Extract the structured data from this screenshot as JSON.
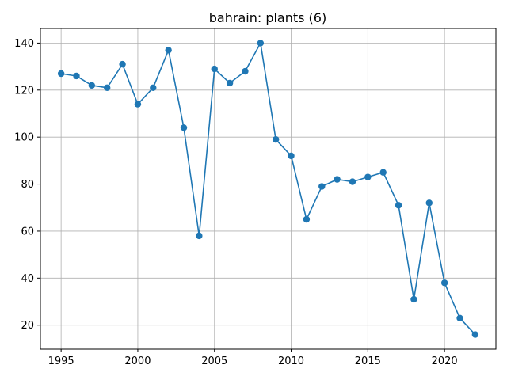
{
  "chart_data": {
    "type": "line",
    "title": "bahrain: plants (6)",
    "xlabel": "",
    "ylabel": "",
    "xlim": [
      1993.65,
      2023.35
    ],
    "ylim": [
      9.8,
      146.2
    ],
    "x_ticks": [
      1995,
      2000,
      2005,
      2010,
      2015,
      2020
    ],
    "y_ticks": [
      20,
      40,
      60,
      80,
      100,
      120,
      140
    ],
    "grid": true,
    "series_color": "#1f77b4",
    "series": [
      {
        "x": [
          1995,
          1996,
          1997,
          1998,
          1999,
          2000,
          2001,
          2002,
          2003,
          2004,
          2005,
          2006,
          2007,
          2008,
          2009,
          2010,
          2011,
          2012,
          2013,
          2014,
          2015,
          2016,
          2017,
          2018,
          2019,
          2020,
          2021,
          2022
        ],
        "values": [
          127,
          126,
          122,
          121,
          131,
          114,
          121,
          137,
          104,
          58,
          129,
          123,
          128,
          140,
          99,
          92,
          65,
          79,
          82,
          81,
          83,
          85,
          71,
          31,
          72,
          38,
          23,
          16
        ]
      }
    ]
  }
}
